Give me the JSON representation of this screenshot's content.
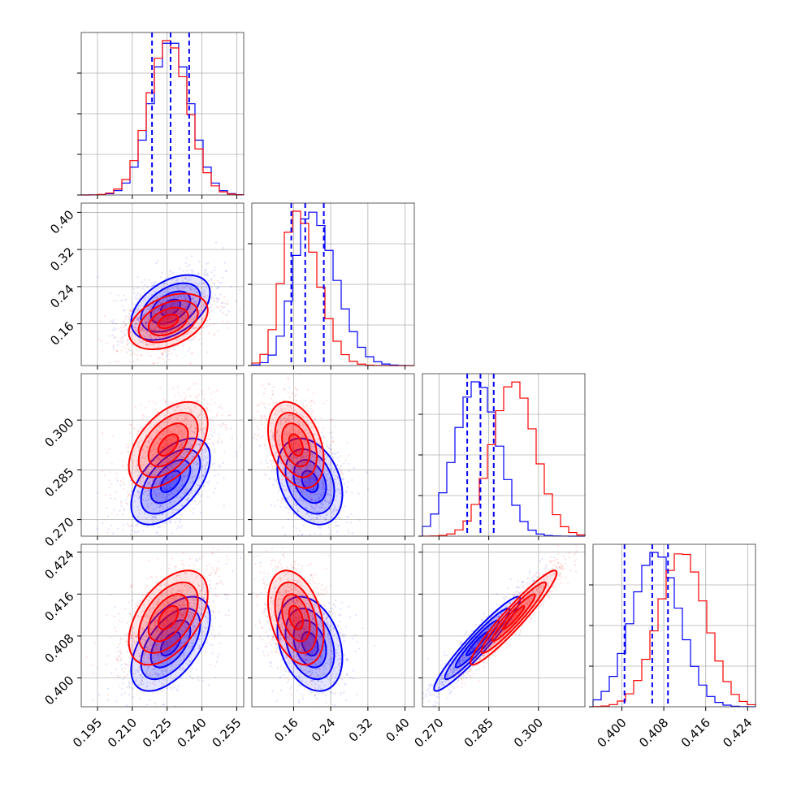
{
  "chart_data": {
    "type": "corner",
    "title": "",
    "parameters": [
      "",
      "",
      "",
      ""
    ],
    "ranges": [
      [
        0.188,
        0.258
      ],
      [
        0.07,
        0.42
      ],
      [
        0.265,
        0.314
      ],
      [
        0.3945,
        0.4255
      ]
    ],
    "ticks": [
      [
        0.195,
        0.21,
        0.225,
        0.24,
        0.255
      ],
      [
        0.16,
        0.24,
        0.32,
        0.4
      ],
      [
        0.27,
        0.285,
        0.3
      ],
      [
        0.4,
        0.408,
        0.416,
        0.424
      ]
    ],
    "tick_labels": [
      [
        "0.195",
        "0.210",
        "0.225",
        "0.240",
        "0.255"
      ],
      [
        "0.16",
        "0.24",
        "0.32",
        "0.40"
      ],
      [
        "0.270",
        "0.285",
        "0.300"
      ],
      [
        "0.400",
        "0.408",
        "0.416",
        "0.424"
      ]
    ],
    "grid": true,
    "series": [
      {
        "color": "#0000ff",
        "mean": [
          0.2265,
          0.195,
          0.2815,
          0.4065
        ],
        "std": [
          0.0085,
          0.035,
          0.0065,
          0.0045
        ],
        "correlations": {
          "0-1": 0.45,
          "0-2": 0.55,
          "0-3": 0.55,
          "1-2": -0.3,
          "1-3": -0.3,
          "2-3": 0.95
        },
        "quantiles_16_50_84": [
          [
            0.2185,
            0.2265,
            0.2345
          ],
          [
            0.155,
            0.185,
            0.225
          ],
          [
            0.2785,
            0.2825,
            0.2865
          ],
          [
            0.4005,
            0.4058,
            0.4088
          ]
        ]
      },
      {
        "color": "#ff0000",
        "mean": [
          0.2255,
          0.165,
          0.2925,
          0.4115
        ],
        "std": [
          0.0085,
          0.03,
          0.0065,
          0.0045
        ],
        "correlations": {
          "0-1": 0.4,
          "0-2": 0.5,
          "0-3": 0.5,
          "1-2": -0.35,
          "1-3": -0.35,
          "2-3": 0.95
        }
      }
    ]
  }
}
